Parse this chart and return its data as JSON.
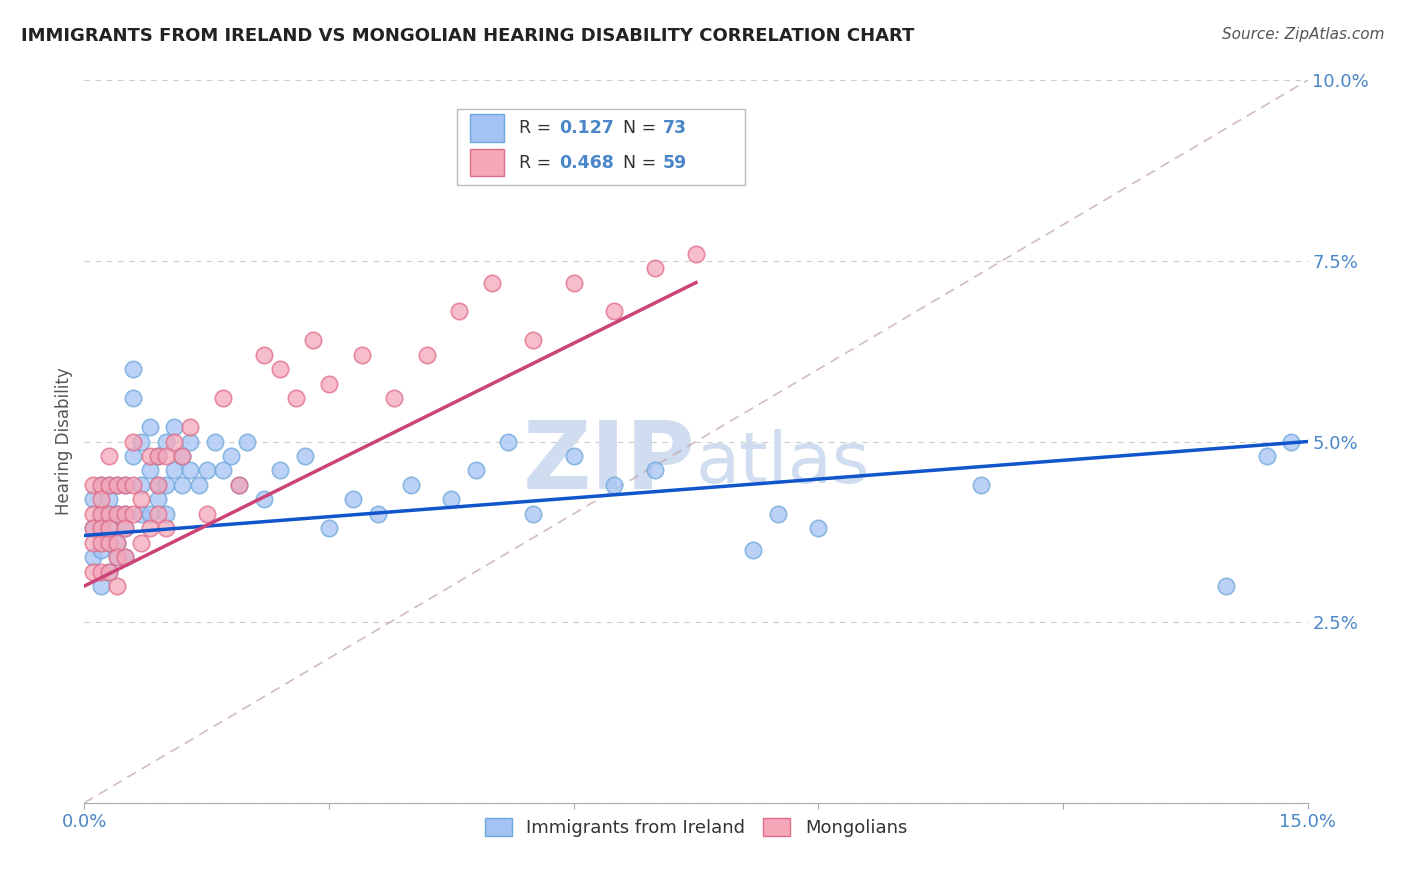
{
  "title": "IMMIGRANTS FROM IRELAND VS MONGOLIAN HEARING DISABILITY CORRELATION CHART",
  "source": "Source: ZipAtlas.com",
  "ylabel_label": "Hearing Disability",
  "xlim": [
    0.0,
    0.15
  ],
  "ylim": [
    0.0,
    0.1
  ],
  "blue_color": "#a4c2f4",
  "blue_color_edge": "#6fa8dc",
  "pink_color": "#f4a7b9",
  "pink_color_edge": "#e06c8a",
  "blue_line_color": "#1155cc",
  "pink_line_color": "#cc4477",
  "diagonal_color": "#c0a0a0",
  "grid_color": "#cccccc",
  "axis_label_color": "#4a86c8",
  "watermark_color": "#d0ddf0",
  "watermark": "ZIPatlas",
  "ireland_x": [
    0.001,
    0.001,
    0.001,
    0.002,
    0.002,
    0.002,
    0.002,
    0.002,
    0.003,
    0.003,
    0.003,
    0.003,
    0.003,
    0.003,
    0.004,
    0.004,
    0.004,
    0.004,
    0.004,
    0.005,
    0.005,
    0.005,
    0.005,
    0.006,
    0.006,
    0.006,
    0.007,
    0.007,
    0.007,
    0.008,
    0.008,
    0.008,
    0.009,
    0.009,
    0.009,
    0.01,
    0.01,
    0.01,
    0.011,
    0.011,
    0.012,
    0.012,
    0.013,
    0.013,
    0.014,
    0.015,
    0.016,
    0.017,
    0.018,
    0.019,
    0.02,
    0.022,
    0.024,
    0.027,
    0.03,
    0.033,
    0.036,
    0.04,
    0.045,
    0.048,
    0.052,
    0.055,
    0.06,
    0.065,
    0.07,
    0.082,
    0.085,
    0.09,
    0.11,
    0.14,
    0.145,
    0.148,
    0.152
  ],
  "ireland_y": [
    0.038,
    0.034,
    0.042,
    0.035,
    0.04,
    0.044,
    0.038,
    0.03,
    0.04,
    0.044,
    0.036,
    0.032,
    0.038,
    0.042,
    0.04,
    0.034,
    0.036,
    0.04,
    0.044,
    0.038,
    0.034,
    0.04,
    0.044,
    0.056,
    0.06,
    0.048,
    0.044,
    0.05,
    0.04,
    0.052,
    0.046,
    0.04,
    0.048,
    0.044,
    0.042,
    0.05,
    0.044,
    0.04,
    0.052,
    0.046,
    0.048,
    0.044,
    0.046,
    0.05,
    0.044,
    0.046,
    0.05,
    0.046,
    0.048,
    0.044,
    0.05,
    0.042,
    0.046,
    0.048,
    0.038,
    0.042,
    0.04,
    0.044,
    0.042,
    0.046,
    0.05,
    0.04,
    0.048,
    0.044,
    0.046,
    0.035,
    0.04,
    0.038,
    0.044,
    0.03,
    0.048,
    0.05,
    0.045
  ],
  "mongolia_x": [
    0.001,
    0.001,
    0.001,
    0.001,
    0.001,
    0.002,
    0.002,
    0.002,
    0.002,
    0.002,
    0.002,
    0.003,
    0.003,
    0.003,
    0.003,
    0.003,
    0.003,
    0.004,
    0.004,
    0.004,
    0.004,
    0.004,
    0.005,
    0.005,
    0.005,
    0.005,
    0.006,
    0.006,
    0.006,
    0.007,
    0.007,
    0.008,
    0.008,
    0.009,
    0.009,
    0.009,
    0.01,
    0.01,
    0.011,
    0.012,
    0.013,
    0.015,
    0.017,
    0.019,
    0.022,
    0.024,
    0.026,
    0.028,
    0.03,
    0.034,
    0.038,
    0.042,
    0.046,
    0.05,
    0.055,
    0.06,
    0.065,
    0.07,
    0.075
  ],
  "mongolia_y": [
    0.036,
    0.04,
    0.044,
    0.032,
    0.038,
    0.036,
    0.04,
    0.044,
    0.032,
    0.038,
    0.042,
    0.036,
    0.04,
    0.044,
    0.048,
    0.032,
    0.038,
    0.036,
    0.04,
    0.044,
    0.03,
    0.034,
    0.04,
    0.044,
    0.034,
    0.038,
    0.044,
    0.04,
    0.05,
    0.036,
    0.042,
    0.048,
    0.038,
    0.048,
    0.04,
    0.044,
    0.048,
    0.038,
    0.05,
    0.048,
    0.052,
    0.04,
    0.056,
    0.044,
    0.062,
    0.06,
    0.056,
    0.064,
    0.058,
    0.062,
    0.056,
    0.062,
    0.068,
    0.072,
    0.064,
    0.072,
    0.068,
    0.074,
    0.076
  ],
  "ireland_line_x": [
    0.0,
    0.15
  ],
  "ireland_line_y": [
    0.037,
    0.05
  ],
  "mongolia_line_x": [
    0.0,
    0.075
  ],
  "mongolia_line_y": [
    0.03,
    0.072
  ]
}
